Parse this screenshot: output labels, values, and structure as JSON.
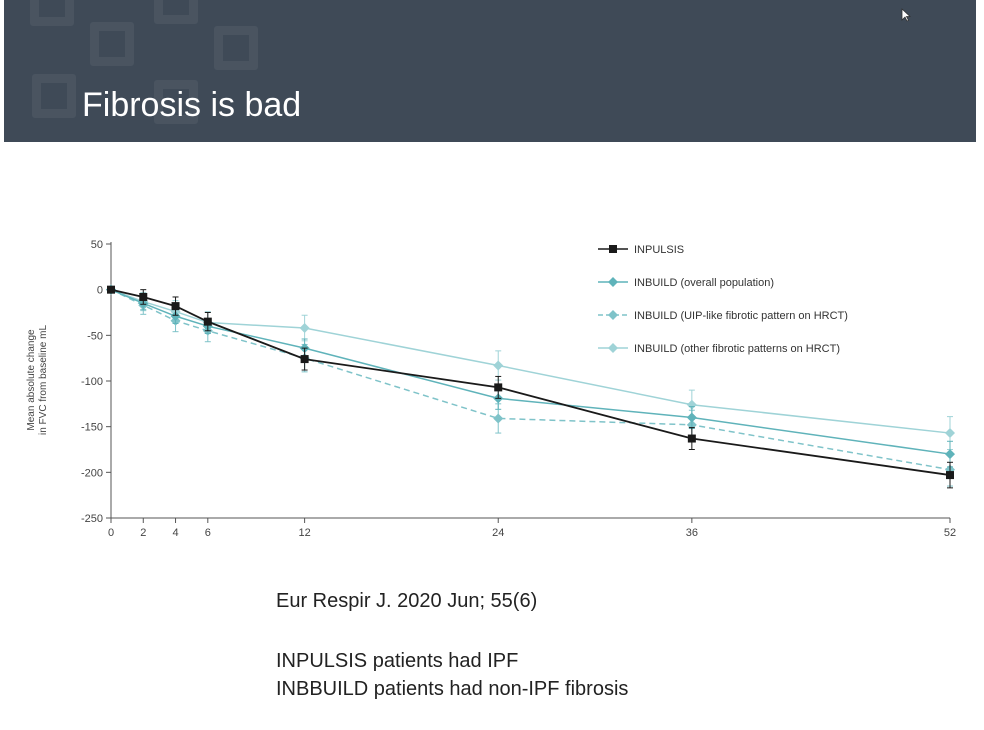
{
  "slide": {
    "title": "Fibrosis is bad",
    "captions": [
      "Eur Respir J. 2020 Jun; 55(6)",
      "INPULSIS patients had IPF",
      "INBBUILD patients had non-IPF fibrosis"
    ]
  },
  "colors": {
    "header_bg": "#3f4a57",
    "inpulsis": "#1a1a1a",
    "inbuild_overall": "#5fb3ba",
    "inbuild_uip": "#7fc3c9",
    "inbuild_other": "#9fd3d7",
    "axis": "#555555"
  },
  "chart_data": {
    "type": "line",
    "ylabel": [
      "Mean absolute change",
      "in FVC from baseline mL"
    ],
    "xlabel": "",
    "x_ticks": [
      0,
      2,
      4,
      6,
      12,
      24,
      36,
      52
    ],
    "y_ticks": [
      50,
      0,
      -50,
      -100,
      -150,
      -200,
      -250
    ],
    "xlim": [
      0,
      52
    ],
    "ylim": [
      -250,
      50
    ],
    "legend_position": "top-right",
    "series": [
      {
        "name": "INPULSIS",
        "marker": "square",
        "dashed": false,
        "color": "#1a1a1a",
        "x": [
          0,
          2,
          4,
          6,
          12,
          24,
          36,
          52
        ],
        "y": [
          0,
          -8,
          -18,
          -35,
          -76,
          -107,
          -163,
          -203
        ],
        "err": [
          0,
          8,
          10,
          10,
          12,
          12,
          12,
          14
        ]
      },
      {
        "name": "INBUILD (overall population)",
        "marker": "diamond",
        "dashed": false,
        "color": "#5fb3ba",
        "x": [
          0,
          2,
          4,
          6,
          12,
          24,
          36,
          52
        ],
        "y": [
          0,
          -15,
          -29,
          -40,
          -64,
          -119,
          -140,
          -180
        ],
        "err": [
          0,
          7,
          8,
          8,
          10,
          12,
          12,
          14
        ]
      },
      {
        "name": "INBUILD (UIP-like fibrotic pattern on HRCT)",
        "marker": "diamond",
        "dashed": true,
        "color": "#7fc3c9",
        "x": [
          0,
          2,
          4,
          6,
          12,
          24,
          36,
          52
        ],
        "y": [
          0,
          -17,
          -34,
          -45,
          -75,
          -141,
          -148,
          -197
        ],
        "err": [
          0,
          10,
          12,
          12,
          15,
          16,
          16,
          18
        ]
      },
      {
        "name": "INBUILD (other fibrotic patterns on HRCT)",
        "marker": "diamond",
        "dashed": false,
        "color": "#9fd3d7",
        "x": [
          0,
          2,
          4,
          6,
          12,
          24,
          36,
          52
        ],
        "y": [
          0,
          -13,
          -24,
          -36,
          -42,
          -83,
          -126,
          -157
        ],
        "err": [
          0,
          10,
          12,
          12,
          14,
          16,
          16,
          18
        ]
      }
    ]
  }
}
